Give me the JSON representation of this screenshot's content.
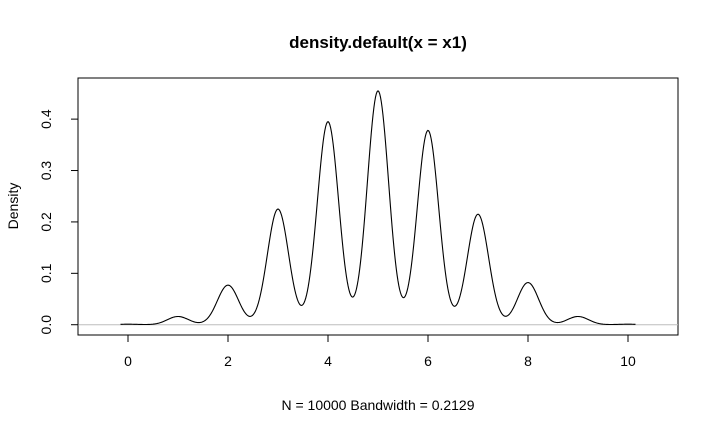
{
  "chart_data": {
    "type": "line",
    "title": "density.default(x = x1)",
    "xlabel": "N = 10000   Bandwidth = 0.2129",
    "ylabel": "Density",
    "xlim": [
      -1,
      11
    ],
    "ylim": [
      -0.02,
      0.48
    ],
    "x_ticks": [
      "0",
      "2",
      "4",
      "6",
      "8",
      "10"
    ],
    "y_ticks": [
      "0.0",
      "0.1",
      "0.2",
      "0.3",
      "0.4"
    ],
    "grid": false,
    "legend": "none",
    "line_color": "#000000",
    "baseline_color": "#bebebe",
    "sample": {
      "n": 10000,
      "bandwidth": 0.2129
    },
    "peaks": [
      {
        "x": 0,
        "density": 0.001
      },
      {
        "x": 1,
        "density": 0.016
      },
      {
        "x": 2,
        "density": 0.077
      },
      {
        "x": 3,
        "density": 0.225
      },
      {
        "x": 4,
        "density": 0.395
      },
      {
        "x": 5,
        "density": 0.455
      },
      {
        "x": 6,
        "density": 0.378
      },
      {
        "x": 7,
        "density": 0.215
      },
      {
        "x": 8,
        "density": 0.082
      },
      {
        "x": 9,
        "density": 0.016
      },
      {
        "x": 10,
        "density": 0.001
      }
    ]
  }
}
